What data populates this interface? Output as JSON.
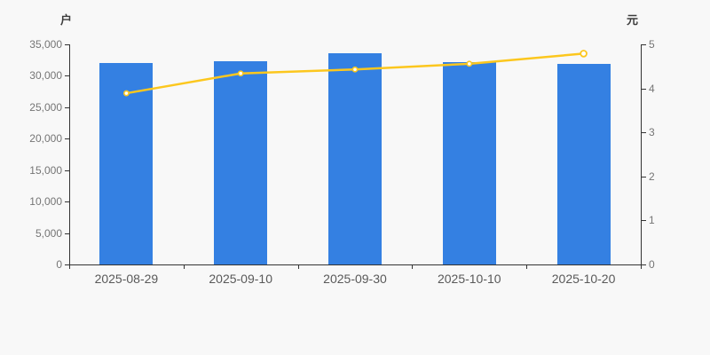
{
  "page": {
    "background": "#f8f8f8"
  },
  "chart_data": {
    "type": "bar",
    "title": "",
    "categories": [
      "2025-08-29",
      "2025-09-10",
      "2025-09-30",
      "2025-10-10",
      "2025-10-20"
    ],
    "series": [
      {
        "id": "holder-count-bars",
        "type": "bar",
        "axis": "left",
        "values": [
          32100,
          32250,
          33600,
          32200,
          31900
        ]
      },
      {
        "id": "value-line",
        "type": "line",
        "axis": "right",
        "values": [
          3.89,
          4.34,
          4.43,
          4.56,
          4.79
        ]
      }
    ],
    "left_axis": {
      "title": "户",
      "min": 0,
      "max": 35000,
      "step": 5000,
      "tick_labels": [
        "0",
        "5,000",
        "10,000",
        "15,000",
        "20,000",
        "25,000",
        "30,000",
        "35,000"
      ]
    },
    "right_axis": {
      "title": "元",
      "min": 0,
      "max": 5,
      "step": 1,
      "tick_labels": [
        "0",
        "1",
        "2",
        "3",
        "4",
        "5"
      ]
    },
    "grid": false,
    "legend": false,
    "colors": {
      "bar": "#3480e2",
      "line": "#fcc71e",
      "marker_fill": "#ffffff",
      "axis_line": "#333333",
      "tick_label": "#757575",
      "category_label": "#595959",
      "axis_title": "#3d3d3d",
      "background": "#f8f8f8"
    }
  }
}
